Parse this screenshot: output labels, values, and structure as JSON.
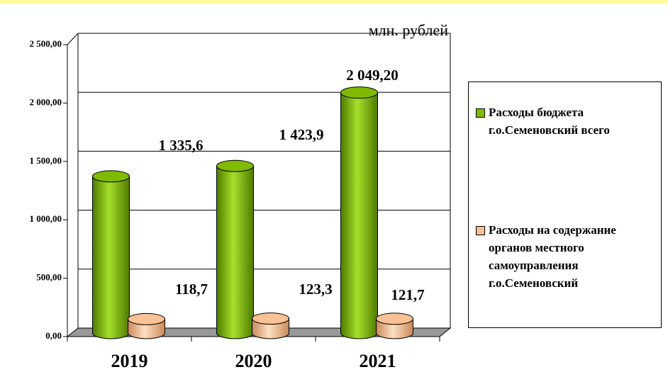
{
  "chart_data": {
    "type": "bar",
    "subtitle": "млн. рублей",
    "categories": [
      "2019",
      "2020",
      "2021"
    ],
    "series": [
      {
        "name": "Расходы бюджета г.о.Семеновский всего",
        "color": "#7fba00",
        "values": [
          1335.6,
          1423.9,
          2049.2
        ],
        "value_labels": [
          "1 335,6",
          "1 423,9",
          "2 049,20"
        ]
      },
      {
        "name": "Расходы на содержание органов местного самоуправления г.о.Семеновский",
        "color": "#f9c194",
        "values": [
          118.7,
          123.3,
          121.7
        ],
        "value_labels": [
          "118,7",
          "123,3",
          "121,7"
        ]
      }
    ],
    "ylim": [
      0,
      2500
    ],
    "yticks": [
      {
        "value": 0,
        "label": "0,00"
      },
      {
        "value": 500,
        "label": "500,00"
      },
      {
        "value": 1000,
        "label": "1 000,00"
      },
      {
        "value": 1500,
        "label": "1 500,00"
      },
      {
        "value": 2000,
        "label": "2 000,00"
      },
      {
        "value": 2500,
        "label": "2 500,00"
      }
    ],
    "grid": true,
    "legend": "right"
  }
}
